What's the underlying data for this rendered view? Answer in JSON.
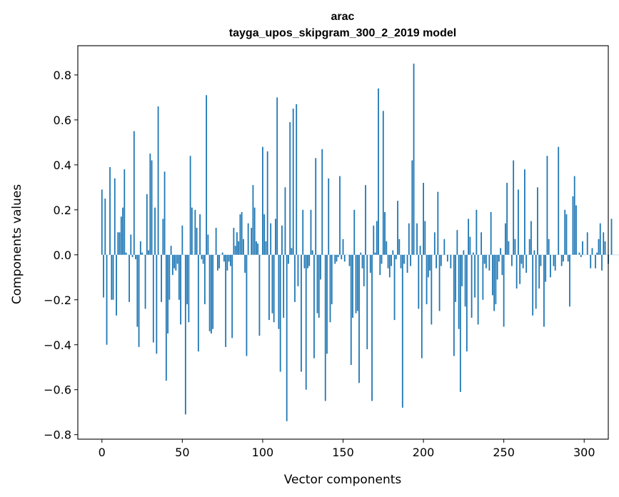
{
  "chart_data": {
    "type": "bar",
    "title_line1": "arac",
    "title_line2": "tayga_upos_skipgram_300_2_2019 model",
    "xlabel": "Vector components",
    "ylabel": "Components values",
    "xlim": [
      -15,
      315
    ],
    "ylim": [
      -0.82,
      0.93
    ],
    "xticks": [
      0,
      50,
      100,
      150,
      200,
      250,
      300
    ],
    "yticks": [
      -0.8,
      -0.6,
      -0.4,
      -0.2,
      0.0,
      0.2,
      0.4,
      0.6,
      0.8
    ],
    "bar_color": "#1f77b4",
    "values": [
      0.29,
      -0.19,
      0.25,
      -0.4,
      0.0,
      0.39,
      -0.2,
      -0.2,
      0.34,
      -0.27,
      0.1,
      0.1,
      0.17,
      0.21,
      0.38,
      0.01,
      0.0,
      -0.21,
      0.09,
      -0.01,
      0.55,
      -0.02,
      -0.32,
      -0.41,
      0.06,
      0.01,
      0.0,
      -0.24,
      0.27,
      0.02,
      0.45,
      0.42,
      -0.39,
      0.21,
      -0.44,
      0.66,
      0.0,
      -0.21,
      0.16,
      0.37,
      -0.56,
      -0.35,
      -0.2,
      0.04,
      -0.09,
      -0.06,
      -0.07,
      -0.04,
      -0.2,
      -0.31,
      0.13,
      0.0,
      -0.71,
      -0.22,
      -0.3,
      0.44,
      0.21,
      0.0,
      0.2,
      0.12,
      -0.43,
      0.18,
      -0.02,
      -0.04,
      -0.22,
      0.71,
      0.09,
      -0.34,
      -0.35,
      -0.33,
      0.0,
      0.12,
      -0.07,
      -0.06,
      0.0,
      0.01,
      -0.03,
      -0.41,
      -0.07,
      -0.03,
      -0.05,
      -0.37,
      0.12,
      0.04,
      0.1,
      0.06,
      0.18,
      0.19,
      0.07,
      -0.08,
      -0.45,
      0.14,
      0.0,
      0.12,
      0.31,
      0.21,
      0.06,
      0.05,
      -0.36,
      0.0,
      0.48,
      0.18,
      0.06,
      0.46,
      -0.29,
      0.14,
      -0.26,
      -0.3,
      0.16,
      0.7,
      -0.33,
      -0.52,
      0.13,
      -0.28,
      0.3,
      -0.74,
      -0.04,
      0.59,
      0.03,
      0.65,
      -0.21,
      0.67,
      -0.14,
      0.0,
      -0.52,
      0.2,
      -0.06,
      -0.6,
      -0.06,
      -0.05,
      0.2,
      0.02,
      -0.46,
      0.43,
      -0.26,
      -0.28,
      -0.11,
      0.47,
      0.0,
      -0.65,
      -0.44,
      0.34,
      -0.3,
      -0.22,
      0.0,
      -0.04,
      -0.03,
      -0.01,
      0.35,
      -0.02,
      0.07,
      -0.03,
      0.0,
      0.0,
      -0.05,
      -0.49,
      -0.28,
      0.2,
      -0.26,
      -0.25,
      -0.57,
      0.01,
      -0.06,
      -0.14,
      0.31,
      -0.42,
      0.0,
      -0.08,
      -0.65,
      0.13,
      0.01,
      0.15,
      0.74,
      -0.09,
      -0.04,
      0.64,
      0.19,
      0.06,
      -0.06,
      -0.1,
      -0.05,
      0.02,
      -0.29,
      -0.02,
      0.24,
      0.07,
      -0.06,
      -0.68,
      -0.04,
      0.0,
      -0.08,
      0.14,
      -0.05,
      0.42,
      0.85,
      0.0,
      0.14,
      -0.24,
      0.04,
      -0.46,
      0.32,
      0.15,
      -0.22,
      -0.1,
      -0.07,
      -0.31,
      0.0,
      0.1,
      -0.06,
      0.28,
      -0.25,
      -0.05,
      0.0,
      0.07,
      0.0,
      -0.03,
      0.0,
      -0.06,
      0.0,
      -0.45,
      -0.21,
      0.11,
      -0.33,
      -0.61,
      -0.14,
      0.02,
      -0.23,
      -0.43,
      0.16,
      0.08,
      -0.28,
      0.01,
      -0.19,
      0.2,
      -0.31,
      0.0,
      0.1,
      -0.2,
      -0.04,
      -0.06,
      0.0,
      -0.07,
      0.19,
      -0.18,
      -0.25,
      -0.22,
      -0.11,
      -0.03,
      0.03,
      -0.09,
      -0.32,
      0.14,
      0.32,
      0.06,
      0.0,
      -0.05,
      0.42,
      0.07,
      -0.15,
      0.29,
      -0.13,
      -0.04,
      -0.06,
      0.38,
      -0.08,
      0.0,
      0.07,
      0.15,
      -0.27,
      0.02,
      -0.24,
      0.3,
      -0.15,
      -0.05,
      0.0,
      -0.32,
      -0.12,
      0.44,
      0.07,
      -0.1,
      0.0,
      -0.05,
      -0.07,
      0.0,
      0.48,
      0.0,
      -0.05,
      -0.03,
      0.2,
      0.18,
      -0.03,
      -0.23,
      0.0,
      0.26,
      0.35,
      0.22,
      0.0,
      0.01,
      -0.01,
      0.06,
      0.0,
      0.0,
      0.1,
      0.0,
      -0.06,
      0.03,
      0.0,
      -0.06,
      0.01,
      0.07,
      0.14,
      -0.07,
      0.1,
      0.06,
      0.0,
      -0.04,
      0.0,
      0.16,
      0.0,
      0.0,
      0.0,
      0.0,
      0.0,
      0.0,
      0.0,
      0.0,
      0.0
    ]
  }
}
